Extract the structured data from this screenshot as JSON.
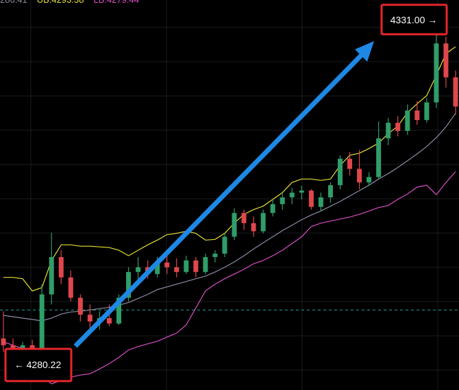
{
  "chart_data": {
    "type": "candlestick",
    "header_labels": [
      {
        "text": "286.41",
        "color": "#8d8d99"
      },
      {
        "text": "UB:4293.38",
        "color": "#e6e033"
      },
      {
        "text": "LB:4279.44",
        "color": "#d94fc4"
      }
    ],
    "up_color": "#2f9e6a",
    "down_color": "#e0474c",
    "open": [
      4284,
      4283,
      4281.5,
      4283,
      4282,
      4290.5,
      4296,
      4293,
      4290,
      4287.5,
      4286.5,
      4287,
      4286.2,
      4290,
      4293.8,
      4294.5,
      4293.5,
      4295.2,
      4294.5,
      4293.8,
      4295.5,
      4293.8,
      4296,
      4296.5,
      4299,
      4302.5,
      4301,
      4299.8,
      4302.5,
      4303.8,
      4304.8,
      4305.5,
      4305.8,
      4303.4,
      4304.8,
      4306.6,
      4310.5,
      4309,
      4307,
      4307.8,
      4313.5,
      4315.8,
      4314.6,
      4317.6,
      4316.2,
      4318.8,
      4327.5,
      4322.5
    ],
    "high": [
      4288,
      4284,
      4283.5,
      4283.8,
      4292,
      4299.6,
      4297,
      4294,
      4290.5,
      4289,
      4288,
      4289,
      4290.5,
      4294.5,
      4296,
      4295.5,
      4296,
      4296.5,
      4295.8,
      4296.2,
      4296,
      4296.5,
      4297,
      4299.5,
      4303.2,
      4303,
      4302,
      4303,
      4304.5,
      4305.5,
      4306.2,
      4306.5,
      4306,
      4305.5,
      4307,
      4311,
      4311.5,
      4311.8,
      4308.5,
      4316,
      4316.5,
      4316.8,
      4318.5,
      4319,
      4319.5,
      4331,
      4328.5,
      4323.5
    ],
    "low": [
      4282,
      4280.22,
      4281,
      4281.5,
      4281.8,
      4289,
      4292,
      4289.5,
      4286.5,
      4285.5,
      4285.3,
      4285.8,
      4286,
      4289.5,
      4292.5,
      4292.8,
      4293,
      4293.5,
      4293,
      4293.5,
      4293,
      4293.5,
      4295.2,
      4296,
      4298.5,
      4300,
      4299,
      4299.5,
      4302,
      4303,
      4303.8,
      4304.5,
      4303,
      4302.8,
      4304,
      4306,
      4308,
      4306,
      4306.5,
      4307.5,
      4312.5,
      4313.8,
      4314,
      4315.5,
      4315.8,
      4318,
      4321,
      4317
    ],
    "close": [
      4283,
      4281.5,
      4283,
      4282,
      4290.5,
      4296,
      4293,
      4290,
      4287.5,
      4286.5,
      4287,
      4286.2,
      4290,
      4293.8,
      4294.5,
      4293.5,
      4295.2,
      4294.5,
      4293.8,
      4295.5,
      4293.8,
      4296,
      4296.5,
      4299,
      4302.5,
      4301,
      4299.8,
      4302.5,
      4303.8,
      4304.8,
      4305.5,
      4305.8,
      4303.4,
      4304.8,
      4306.6,
      4310.5,
      4309,
      4307,
      4307.8,
      4313.5,
      4315.8,
      4314.6,
      4317.6,
      4316.2,
      4318.8,
      4327.5,
      4322.5,
      4318.2
    ],
    "bands": [
      {
        "color": "#e6e033",
        "values": [
          4293,
          4293,
          4292.8,
          4291,
          4291.5,
          4295.5,
          4297.8,
          4297.8,
          4297.6,
          4297.6,
          4297.5,
          4297.4,
          4297,
          4296.2,
          4297,
          4297.8,
          4298.5,
          4299.3,
          4299.5,
          4299.8,
          4299.5,
          4298.5,
          4298.6,
          4299.5,
          4301,
          4302.3,
          4303,
          4303.5,
          4304.5,
          4305.5,
          4307,
          4307.5,
          4307.5,
          4307.3,
          4307.5,
          4309.5,
          4311,
          4311.3,
          4312,
          4312.8,
          4314.2,
          4315.3,
          4317.3,
          4318.6,
          4319.8,
          4322.8,
          4326,
          4327
        ]
      },
      {
        "color": "#8d8da8",
        "values": [
          4287.4,
          4287.2,
          4287,
          4286.8,
          4286.6,
          4287,
          4287.6,
          4287.9,
          4288,
          4288.2,
          4288.4,
          4288.6,
          4288.9,
          4289.3,
          4289.9,
          4290.5,
          4291.2,
          4291.6,
          4292,
          4292.4,
          4292.8,
          4293.2,
          4293.8,
          4294.5,
          4295.3,
          4296.2,
          4297.2,
          4298.1,
          4299,
          4299.9,
          4300.7,
          4301.5,
          4302.2,
          4302.8,
          4303.5,
          4304.2,
          4305,
          4305.8,
          4306.6,
          4307.5,
          4308.3,
          4309.2,
          4310.2,
          4311.2,
          4312.3,
          4313.6,
          4315.2,
          4317.2
        ]
      },
      {
        "color": "#d94fc4",
        "values": [
          4283.5,
          4283,
          4282.5,
          4281.5,
          4278.5,
          4277.3,
          4277.8,
          4278.3,
          4278.6,
          4278.8,
          4279.5,
          4280.3,
          4281.2,
          4282.3,
          4282.8,
          4283.2,
          4283.6,
          4284.2,
          4284.8,
          4286,
          4288.5,
          4291,
          4292,
          4292.8,
          4293.5,
          4294.2,
          4295,
          4295.5,
          4296.2,
          4297,
          4298,
          4299,
          4300.5,
          4301,
          4301.3,
          4301.6,
          4301.9,
          4302.3,
          4302.8,
          4303.3,
          4303.6,
          4304.5,
          4305.3,
          4306.3,
          4306.6,
          4305.2,
          4307,
          4308.6
        ]
      }
    ],
    "price_line": {
      "value": 4288.2,
      "color": "#26a69a"
    },
    "ylim": [
      4276.4,
      4333.9
    ],
    "annotations": [
      {
        "text": "4331.00 →"
      },
      {
        "text": "← 4280.22"
      }
    ]
  }
}
